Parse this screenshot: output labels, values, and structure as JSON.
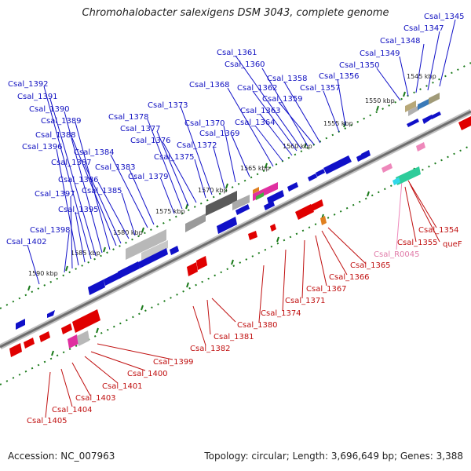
{
  "title": "Chromohalobacter salexigens DSM 3043, complete genome",
  "footer": {
    "accession": "Accession: NC_007963",
    "summary": "Topology: circular; Length: 3,696,649 bp; Genes: 3,388"
  },
  "colors": {
    "forward": "#1010c8",
    "reverse": "#e00000",
    "pseudo": "#ee88bb",
    "backbone": "#7a7a7a",
    "tick": "#1a7a1a"
  },
  "ticks": [
    "1545 kbp",
    "1550 kbp",
    "1555 kbp",
    "1560 kbp",
    "1565 kbp",
    "1570 kbp",
    "1575 kbp",
    "1580 kbp",
    "1585 kbp",
    "1590 kbp"
  ],
  "forward_labels": [
    "Csal_1345",
    "Csal_1347",
    "Csal_1348",
    "Csal_1349",
    "Csal_1350",
    "Csal_1356",
    "Csal_1357",
    "Csal_1358",
    "Csal_1359",
    "Csal_1360",
    "Csal_1361",
    "Csal_1362",
    "Csal_1363",
    "Csal_1364",
    "Csal_1368",
    "Csal_1369",
    "Csal_1370",
    "Csal_1372",
    "Csal_1373",
    "Csal_1375",
    "Csal_1376",
    "Csal_1377",
    "Csal_1378",
    "Csal_1379",
    "Csal_1383",
    "Csal_1384",
    "Csal_1385",
    "Csal_1386",
    "Csal_1387",
    "Csal_1388",
    "Csal_1389",
    "Csal_1390",
    "Csal_1391",
    "Csal_1392",
    "Csal_1395",
    "Csal_1396",
    "Csal_1397",
    "Csal_1398",
    "Csal_1402"
  ],
  "reverse_labels": [
    "Csal_1354",
    "queF",
    "Csal_1355",
    "Csal_1365",
    "Csal_1366",
    "Csal_1367",
    "Csal_1371",
    "Csal_1374",
    "Csal_1380",
    "Csal_1381",
    "Csal_1382",
    "Csal_1399",
    "Csal_1400",
    "Csal_1401",
    "Csal_1403",
    "Csal_1404",
    "Csal_1405"
  ],
  "pseudo_labels": [
    "Csal_R0045"
  ]
}
